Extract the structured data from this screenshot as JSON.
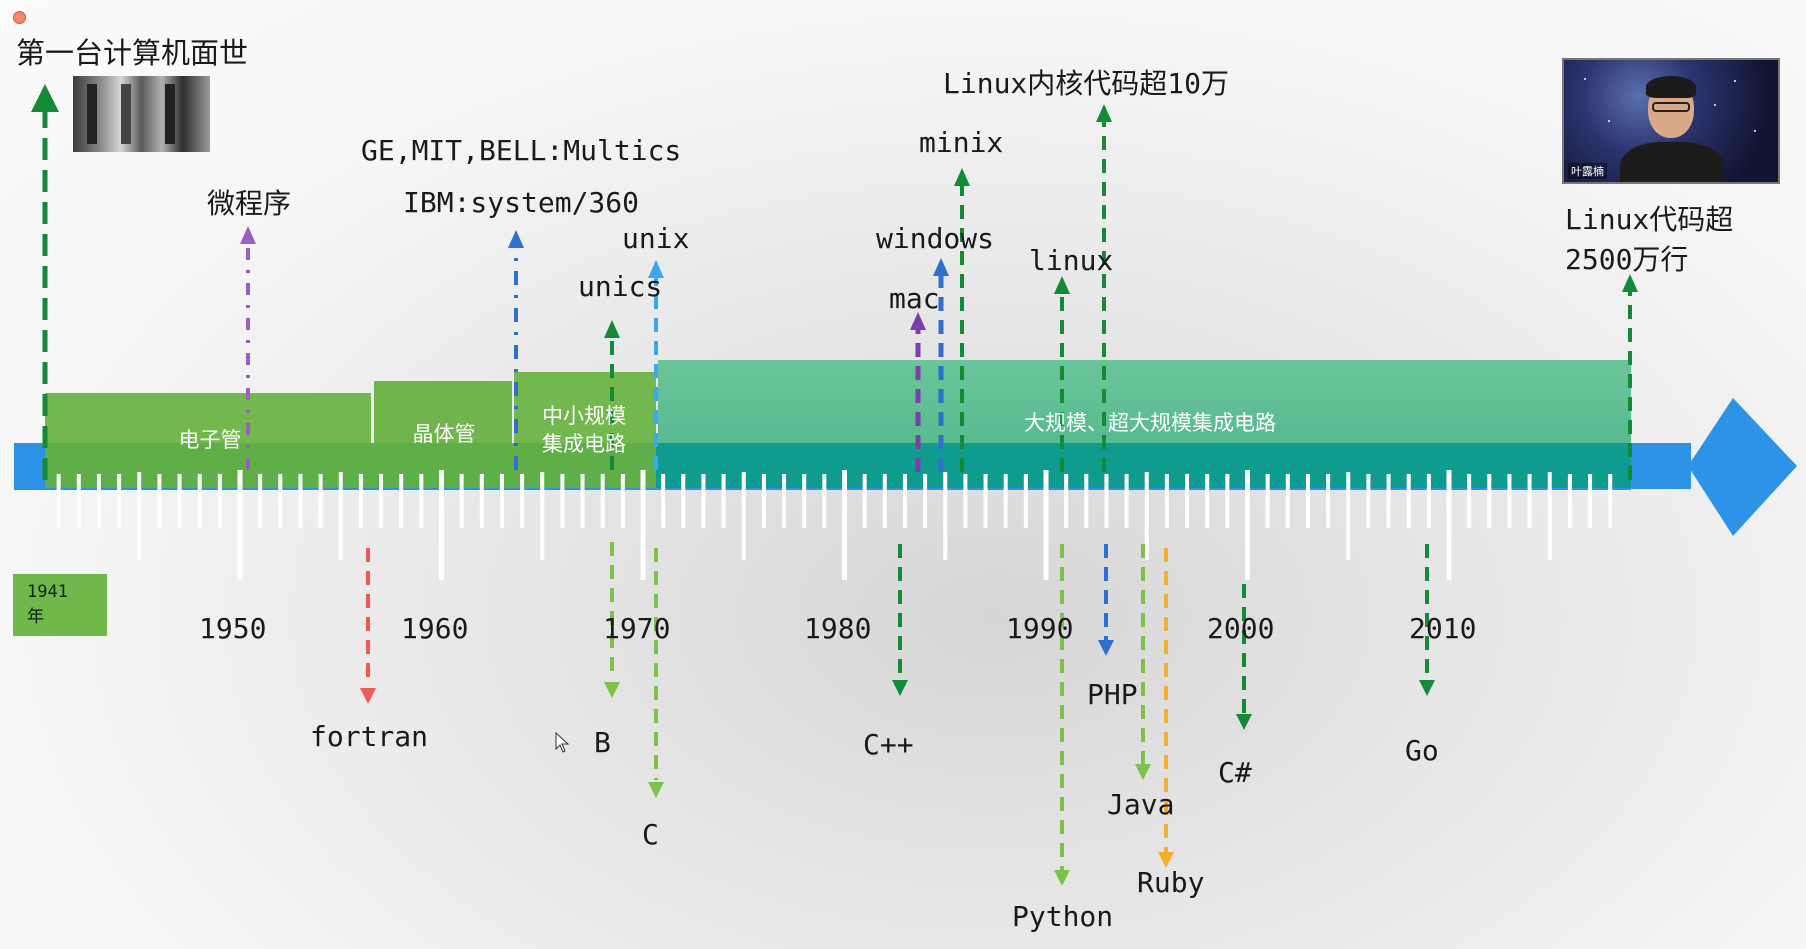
{
  "title": "第一台计算机面世",
  "start_year": {
    "line1": "1941",
    "line2": "年"
  },
  "eras": [
    {
      "label": "电子管"
    },
    {
      "label": "晶体管"
    },
    {
      "label_line1": "中小规模",
      "label_line2": "集成电路"
    },
    {
      "label": "大规模、超大规模集成电路"
    }
  ],
  "years": [
    "1950",
    "1960",
    "1970",
    "1980",
    "1990",
    "2000",
    "2010"
  ],
  "above_labels": {
    "microprogram": "微程序",
    "multics": "GE,MIT,BELL:Multics",
    "system360": "IBM:system/360",
    "unix": "unix",
    "unics": "unics",
    "windows": "windows",
    "mac": "mac",
    "minix": "minix",
    "linux": "linux",
    "linux_kernel": "Linux内核代码超10万",
    "linux_now_line1": "Linux代码超",
    "linux_now_line2": "2500万行"
  },
  "below_labels": {
    "fortran": "fortran",
    "b": "B",
    "c": "C",
    "cpp": "C++",
    "php": "PHP",
    "python": "Python",
    "java": "Java",
    "ruby": "Ruby",
    "csharp": "C#",
    "go": "Go"
  },
  "video": {
    "name": "叶露楠"
  },
  "colors": {
    "timeline_blue": "#2d93e6",
    "era_green": "#72b84f",
    "era_teal": "#5fbf8f",
    "dark_green_arrow": "#128a36",
    "light_green_arrow": "#7cc24a",
    "purple_arrow": "#9a5fbf",
    "blue_arrow": "#2f6fcf",
    "red_arrow": "#ee5a57",
    "orange_arrow": "#f5b02a",
    "sky_arrow": "#3aa7ee"
  }
}
